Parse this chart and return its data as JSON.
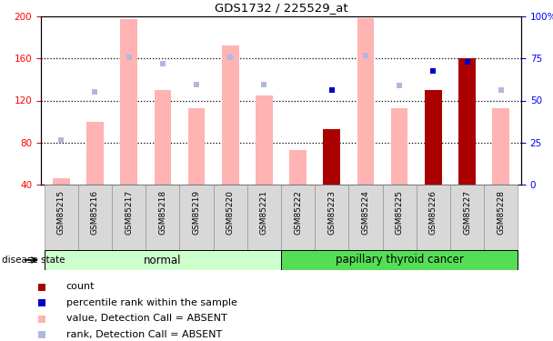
{
  "title": "GDS1732 / 225529_at",
  "samples": [
    "GSM85215",
    "GSM85216",
    "GSM85217",
    "GSM85218",
    "GSM85219",
    "GSM85220",
    "GSM85221",
    "GSM85222",
    "GSM85223",
    "GSM85224",
    "GSM85225",
    "GSM85226",
    "GSM85227",
    "GSM85228"
  ],
  "groups": {
    "normal": [
      "GSM85215",
      "GSM85216",
      "GSM85217",
      "GSM85218",
      "GSM85219",
      "GSM85220",
      "GSM85221"
    ],
    "papillary thyroid cancer": [
      "GSM85222",
      "GSM85223",
      "GSM85224",
      "GSM85225",
      "GSM85226",
      "GSM85227",
      "GSM85228"
    ]
  },
  "value_bars": [
    46,
    100,
    197,
    130,
    113,
    172,
    125,
    73,
    93,
    198,
    113,
    130,
    160,
    113
  ],
  "rank_bars": [
    null,
    null,
    null,
    null,
    null,
    null,
    null,
    null,
    93,
    null,
    null,
    130,
    157,
    null
  ],
  "value_absent": [
    true,
    true,
    true,
    true,
    true,
    true,
    true,
    true,
    false,
    true,
    true,
    false,
    false,
    true
  ],
  "rank_bars_absent": [
    true,
    true,
    true,
    true,
    true,
    true,
    true,
    true,
    false,
    true,
    true,
    false,
    false,
    true
  ],
  "rank_dots_left": [
    82,
    128,
    161,
    155,
    135,
    161,
    135,
    null,
    130,
    163,
    134,
    148,
    157,
    130
  ],
  "rank_dots_absent": [
    true,
    true,
    true,
    true,
    true,
    true,
    true,
    null,
    false,
    true,
    true,
    false,
    false,
    true
  ],
  "ylim_left": [
    40,
    200
  ],
  "ylim_right": [
    0,
    100
  ],
  "yticks_left": [
    40,
    80,
    120,
    160,
    200
  ],
  "yticks_right": [
    0,
    25,
    50,
    75,
    100
  ],
  "ytick_labels_left": [
    "40",
    "80",
    "120",
    "160",
    "200"
  ],
  "ytick_labels_right": [
    "0",
    "25",
    "50",
    "75",
    "100%"
  ],
  "color_value_absent": "#ffb3b3",
  "color_rank_dot_absent": "#b0b8e0",
  "color_value_present": "#aa0000",
  "color_rank_present": "#0000cc",
  "group_normal_color": "#ccffcc",
  "group_cancer_color": "#55dd55",
  "background_color": "#ffffff",
  "dotted_lines": [
    80,
    120,
    160
  ],
  "legend_items": [
    {
      "label": "count",
      "color": "#aa0000"
    },
    {
      "label": "percentile rank within the sample",
      "color": "#0000cc"
    },
    {
      "label": "value, Detection Call = ABSENT",
      "color": "#ffb3b3"
    },
    {
      "label": "rank, Detection Call = ABSENT",
      "color": "#b0b8e0"
    }
  ]
}
